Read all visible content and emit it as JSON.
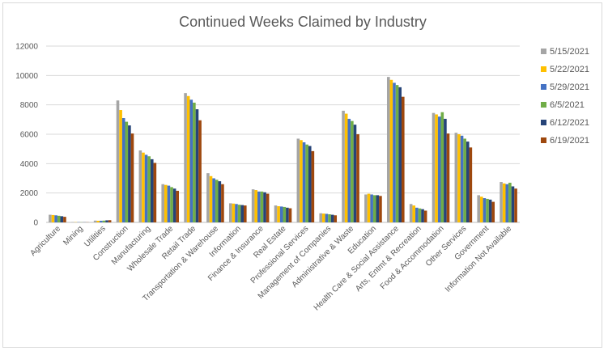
{
  "chart_data": {
    "type": "bar",
    "title": "Continued Weeks Claimed by Industry",
    "xlabel": "",
    "ylabel": "",
    "ylim": [
      0,
      12000
    ],
    "yticks": [
      "0",
      "2000",
      "4000",
      "6000",
      "8000",
      "10000",
      "12000"
    ],
    "grid": true,
    "legend_position": "right",
    "categories": [
      "Agriculture",
      "Mining",
      "Utilities",
      "Construction",
      "Manufacturing",
      "Wholesale Trade",
      "Retail Trade",
      "Transportation & Warehouse",
      "Information",
      "Finance & Insurance",
      "Real Estate",
      "Professional Services",
      "Management of Companies",
      "Administrative & Waste",
      "Education",
      "Health Care & Social Assistance",
      "Arts, Entmt & Recreation",
      "Food & Accommodation",
      "Other Services",
      "Government",
      "Information Not Available"
    ],
    "series": [
      {
        "name": "5/15/2021",
        "color": "#a5a5a5",
        "values": [
          520,
          20,
          120,
          8300,
          4900,
          2600,
          8800,
          3350,
          1300,
          2250,
          1150,
          5700,
          620,
          7600,
          1900,
          9900,
          1250,
          7450,
          6100,
          1850,
          2750
        ]
      },
      {
        "name": "5/22/2021",
        "color": "#ffc000",
        "values": [
          500,
          15,
          110,
          7650,
          4750,
          2550,
          8600,
          3150,
          1280,
          2200,
          1100,
          5600,
          600,
          7400,
          1950,
          9700,
          1150,
          7350,
          6000,
          1750,
          2650
        ]
      },
      {
        "name": "5/29/2021",
        "color": "#4472c4",
        "values": [
          480,
          15,
          110,
          7100,
          4600,
          2500,
          8350,
          3000,
          1250,
          2100,
          1080,
          5450,
          580,
          7050,
          1900,
          9500,
          1000,
          7200,
          5900,
          1650,
          2600
        ]
      },
      {
        "name": "6/5/2021",
        "color": "#70ad47",
        "values": [
          450,
          12,
          120,
          6850,
          4500,
          2400,
          8150,
          2900,
          1200,
          2100,
          1050,
          5300,
          550,
          6900,
          1850,
          9350,
          950,
          7500,
          5700,
          1600,
          2700
        ]
      },
      {
        "name": "6/12/2021",
        "color": "#264478",
        "values": [
          420,
          10,
          140,
          6600,
          4300,
          2300,
          7700,
          2800,
          1180,
          2050,
          1000,
          5200,
          520,
          6650,
          1850,
          9200,
          900,
          7050,
          5500,
          1550,
          2450
        ]
      },
      {
        "name": "6/19/2021",
        "color": "#9e480e",
        "values": [
          380,
          10,
          150,
          6050,
          4050,
          2150,
          6950,
          2600,
          1150,
          1950,
          960,
          4850,
          480,
          6000,
          1800,
          8550,
          800,
          6050,
          5100,
          1400,
          2300
        ]
      }
    ]
  }
}
